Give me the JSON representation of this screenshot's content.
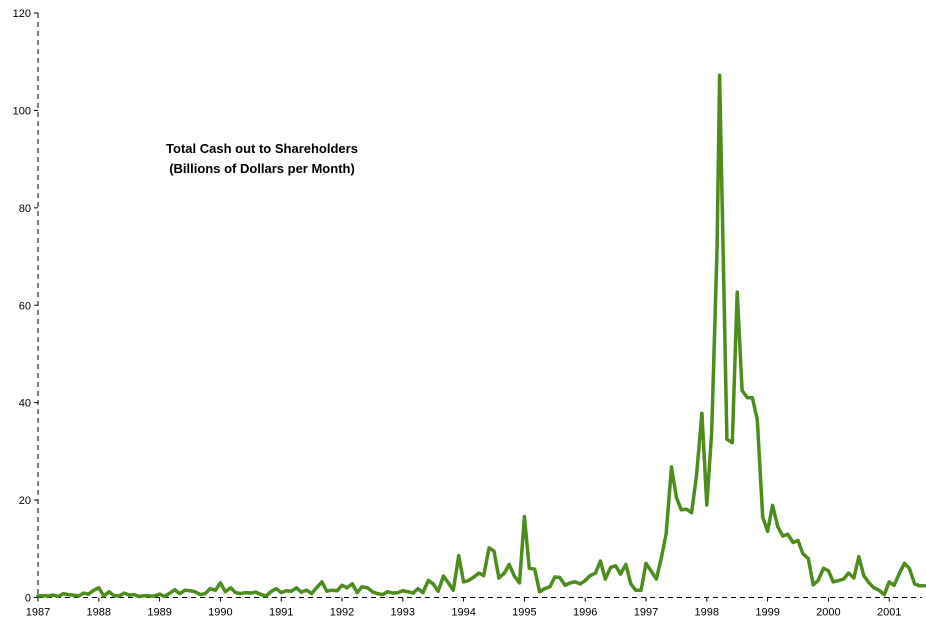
{
  "chart_data": {
    "type": "line",
    "title": [
      "Total Cash out to Shareholders",
      "(Billions of Dollars per Month)"
    ],
    "xlabel": "",
    "ylabel": "",
    "ylim": [
      0,
      120
    ],
    "xlim": [
      1987.0,
      2001.75
    ],
    "yticks": [
      0,
      20,
      40,
      60,
      80,
      100,
      120
    ],
    "xticks": [
      1987,
      1988,
      1989,
      1990,
      1991,
      1992,
      1993,
      1994,
      1995,
      1996,
      1997,
      1998,
      1999,
      2000,
      2001
    ],
    "grid": false,
    "legend": "none",
    "line_color": "#4e8c1e",
    "series": [
      {
        "points": [
          [
            1987.0,
            0.3
          ],
          [
            1987.08,
            0.4
          ],
          [
            1987.17,
            0.3
          ],
          [
            1987.25,
            0.5
          ],
          [
            1987.33,
            0.2
          ],
          [
            1987.42,
            0.8
          ],
          [
            1987.5,
            0.6
          ],
          [
            1987.58,
            0.5
          ],
          [
            1987.67,
            0.3
          ],
          [
            1987.75,
            0.9
          ],
          [
            1987.83,
            0.7
          ],
          [
            1987.92,
            1.5
          ],
          [
            1988.0,
            2.0
          ],
          [
            1988.08,
            0.3
          ],
          [
            1988.17,
            1.2
          ],
          [
            1988.25,
            0.4
          ],
          [
            1988.33,
            0.3
          ],
          [
            1988.42,
            0.9
          ],
          [
            1988.5,
            0.5
          ],
          [
            1988.58,
            0.6
          ],
          [
            1988.67,
            0.2
          ],
          [
            1988.75,
            0.4
          ],
          [
            1988.83,
            0.3
          ],
          [
            1988.92,
            0.3
          ],
          [
            1989.0,
            0.7
          ],
          [
            1989.08,
            0.2
          ],
          [
            1989.17,
            0.9
          ],
          [
            1989.25,
            1.6
          ],
          [
            1989.33,
            0.8
          ],
          [
            1989.42,
            1.5
          ],
          [
            1989.5,
            1.4
          ],
          [
            1989.58,
            1.2
          ],
          [
            1989.67,
            0.6
          ],
          [
            1989.75,
            0.8
          ],
          [
            1989.83,
            1.8
          ],
          [
            1989.92,
            1.5
          ],
          [
            1990.0,
            3.0
          ],
          [
            1990.08,
            1.2
          ],
          [
            1990.17,
            2.0
          ],
          [
            1990.25,
            1.0
          ],
          [
            1990.33,
            0.8
          ],
          [
            1990.42,
            1.0
          ],
          [
            1990.5,
            0.9
          ],
          [
            1990.58,
            1.1
          ],
          [
            1990.67,
            0.6
          ],
          [
            1990.75,
            0.3
          ],
          [
            1990.83,
            1.2
          ],
          [
            1990.92,
            1.8
          ],
          [
            1991.0,
            1.0
          ],
          [
            1991.08,
            1.4
          ],
          [
            1991.17,
            1.3
          ],
          [
            1991.25,
            2.0
          ],
          [
            1991.33,
            1.1
          ],
          [
            1991.42,
            1.5
          ],
          [
            1991.5,
            0.8
          ],
          [
            1991.58,
            2.0
          ],
          [
            1991.67,
            3.2
          ],
          [
            1991.75,
            1.3
          ],
          [
            1991.83,
            1.5
          ],
          [
            1991.92,
            1.4
          ],
          [
            1992.0,
            2.5
          ],
          [
            1992.08,
            2.0
          ],
          [
            1992.17,
            2.8
          ],
          [
            1992.25,
            1.0
          ],
          [
            1992.33,
            2.2
          ],
          [
            1992.42,
            2.0
          ],
          [
            1992.5,
            1.2
          ],
          [
            1992.58,
            0.8
          ],
          [
            1992.67,
            0.6
          ],
          [
            1992.75,
            1.2
          ],
          [
            1992.83,
            0.9
          ],
          [
            1992.92,
            1.0
          ],
          [
            1993.0,
            1.4
          ],
          [
            1993.08,
            1.2
          ],
          [
            1993.17,
            0.9
          ],
          [
            1993.25,
            1.8
          ],
          [
            1993.33,
            1.0
          ],
          [
            1993.42,
            3.5
          ],
          [
            1993.5,
            2.8
          ],
          [
            1993.58,
            1.3
          ],
          [
            1993.67,
            4.4
          ],
          [
            1993.75,
            3.0
          ],
          [
            1993.83,
            1.5
          ],
          [
            1993.92,
            8.6
          ],
          [
            1994.0,
            3.2
          ],
          [
            1994.08,
            3.5
          ],
          [
            1994.17,
            4.2
          ],
          [
            1994.25,
            5.0
          ],
          [
            1994.33,
            4.5
          ],
          [
            1994.42,
            10.2
          ],
          [
            1994.5,
            9.5
          ],
          [
            1994.58,
            4.0
          ],
          [
            1994.67,
            5.0
          ],
          [
            1994.75,
            6.8
          ],
          [
            1994.83,
            4.5
          ],
          [
            1994.92,
            3.0
          ],
          [
            1995.0,
            16.6
          ],
          [
            1995.08,
            6.0
          ],
          [
            1995.17,
            5.8
          ],
          [
            1995.25,
            1.2
          ],
          [
            1995.33,
            1.8
          ],
          [
            1995.42,
            2.2
          ],
          [
            1995.5,
            4.2
          ],
          [
            1995.58,
            4.1
          ],
          [
            1995.67,
            2.5
          ],
          [
            1995.75,
            3.0
          ],
          [
            1995.83,
            3.2
          ],
          [
            1995.92,
            2.8
          ],
          [
            1996.0,
            3.5
          ],
          [
            1996.08,
            4.5
          ],
          [
            1996.17,
            5.0
          ],
          [
            1996.25,
            7.5
          ],
          [
            1996.33,
            3.8
          ],
          [
            1996.42,
            6.2
          ],
          [
            1996.5,
            6.5
          ],
          [
            1996.58,
            4.8
          ],
          [
            1996.67,
            6.8
          ],
          [
            1996.75,
            2.8
          ],
          [
            1996.83,
            1.5
          ],
          [
            1996.92,
            1.5
          ],
          [
            1997.0,
            7.0
          ],
          [
            1997.08,
            5.5
          ],
          [
            1997.17,
            3.8
          ],
          [
            1997.25,
            8.0
          ],
          [
            1997.33,
            13.0
          ],
          [
            1997.42,
            26.8
          ],
          [
            1997.5,
            20.5
          ],
          [
            1997.58,
            18.0
          ],
          [
            1997.67,
            18.1
          ],
          [
            1997.75,
            17.4
          ],
          [
            1997.83,
            25.0
          ],
          [
            1997.92,
            37.8
          ],
          [
            1998.0,
            19.0
          ],
          [
            1998.08,
            34.0
          ],
          [
            1998.17,
            72.0
          ],
          [
            1998.21,
            107.2
          ],
          [
            1998.33,
            32.5
          ],
          [
            1998.42,
            31.8
          ],
          [
            1998.5,
            62.7
          ],
          [
            1998.58,
            42.5
          ],
          [
            1998.67,
            41.0
          ],
          [
            1998.75,
            41.0
          ],
          [
            1998.83,
            36.5
          ],
          [
            1998.92,
            16.5
          ],
          [
            1999.0,
            13.6
          ],
          [
            1999.08,
            18.9
          ],
          [
            1999.17,
            14.5
          ],
          [
            1999.25,
            12.6
          ],
          [
            1999.33,
            13.0
          ],
          [
            1999.42,
            11.3
          ],
          [
            1999.5,
            11.7
          ],
          [
            1999.58,
            9.0
          ],
          [
            1999.67,
            8.0
          ],
          [
            1999.75,
            2.6
          ],
          [
            1999.83,
            3.5
          ],
          [
            1999.92,
            6.0
          ],
          [
            2000.0,
            5.5
          ],
          [
            2000.08,
            3.2
          ],
          [
            2000.17,
            3.5
          ],
          [
            2000.25,
            3.8
          ],
          [
            2000.33,
            5.0
          ],
          [
            2000.42,
            4.0
          ],
          [
            2000.5,
            8.4
          ],
          [
            2000.58,
            4.5
          ],
          [
            2000.67,
            3.0
          ],
          [
            2000.75,
            2.0
          ],
          [
            2000.83,
            1.5
          ],
          [
            2000.92,
            0.6
          ],
          [
            2001.0,
            3.2
          ],
          [
            2001.08,
            2.5
          ],
          [
            2001.17,
            5.0
          ],
          [
            2001.25,
            7.0
          ],
          [
            2001.33,
            6.0
          ],
          [
            2001.42,
            2.8
          ],
          [
            2001.5,
            2.4
          ],
          [
            2001.58,
            2.4
          ]
        ]
      }
    ]
  }
}
